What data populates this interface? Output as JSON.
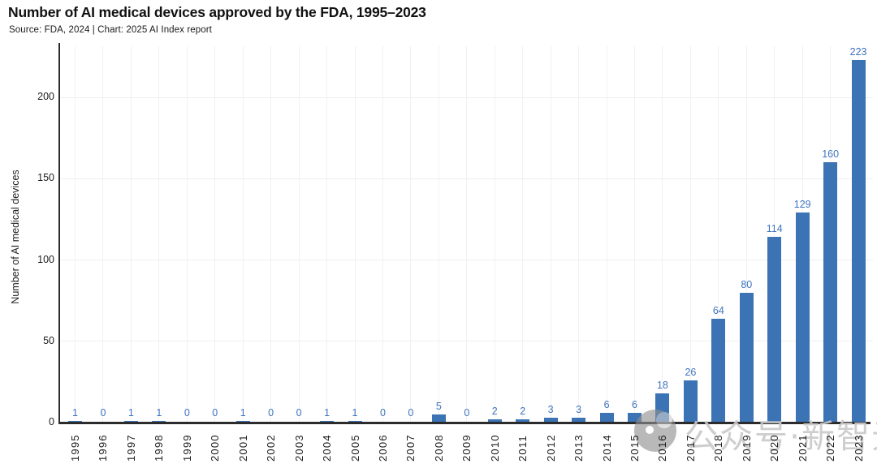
{
  "header": {
    "title": "Number of AI medical devices approved by the FDA, 1995–2023",
    "subtitle": "Source: FDA, 2024 | Chart: 2025 AI Index report"
  },
  "chart_data": {
    "type": "bar",
    "title": "Number of AI medical devices approved by the FDA, 1995–2023",
    "categories": [
      "1995",
      "1996",
      "1997",
      "1998",
      "1999",
      "2000",
      "2001",
      "2002",
      "2003",
      "2004",
      "2005",
      "2006",
      "2007",
      "2008",
      "2009",
      "2010",
      "2011",
      "2012",
      "2013",
      "2014",
      "2015",
      "2016",
      "2017",
      "2018",
      "2019",
      "2020",
      "2021",
      "2022",
      "2023"
    ],
    "values": [
      1,
      0,
      1,
      1,
      0,
      0,
      1,
      0,
      0,
      1,
      1,
      0,
      0,
      5,
      0,
      2,
      2,
      3,
      3,
      6,
      6,
      18,
      26,
      64,
      80,
      114,
      129,
      160,
      223
    ],
    "xlabel": "",
    "ylabel": "Number of AI medical devices",
    "yticks": [
      0,
      50,
      100,
      150,
      200
    ],
    "ylim": [
      0,
      225
    ],
    "grid": true,
    "legend_position": "none",
    "value_labels_shown": true
  },
  "colors": {
    "bar": "#3b73b4",
    "value_label": "#3f74bf",
    "axis": "#2b2b2b",
    "grid_h": "#f0efec",
    "grid_v": "#f3f1ee",
    "text": "#1c1c1c",
    "watermark": "#c9c9c9"
  },
  "watermark": {
    "text": "公众号·新智元",
    "logo": "gray-circle-face-logo"
  }
}
